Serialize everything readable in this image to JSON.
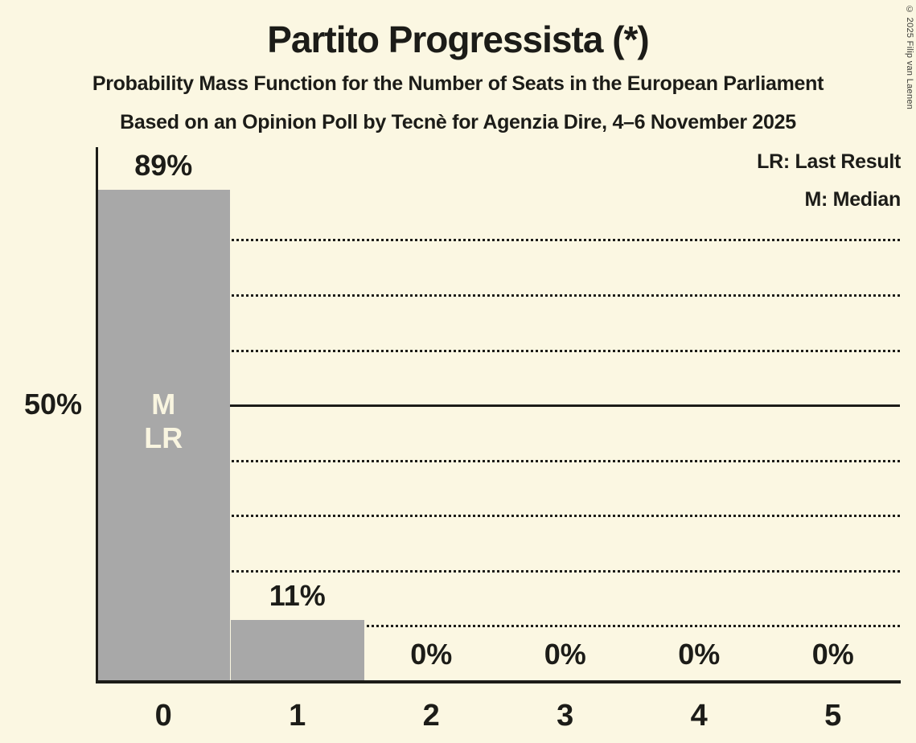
{
  "title": "Partito Progressista (*)",
  "subtitle_line1": "Probability Mass Function for the Number of Seats in the European Parliament",
  "subtitle_line2": "Based on an Opinion Poll by Tecnè for Agenzia Dire, 4–6 November 2025",
  "legend": {
    "last_result": "LR: Last Result",
    "median": "M: Median"
  },
  "copyright": "© 2025 Filip van Laenen",
  "colors": {
    "background": "#FBF7E2",
    "bar": "#A8A8A8",
    "text": "#1C1C18",
    "bar_annotation_text": "#F9F5E0"
  },
  "chart_data": {
    "type": "bar",
    "title": "Partito Progressista (*)",
    "xlabel": "",
    "ylabel": "",
    "categories": [
      "0",
      "1",
      "2",
      "3",
      "4",
      "5"
    ],
    "values": [
      89,
      11,
      0,
      0,
      0,
      0
    ],
    "value_labels": [
      "89%",
      "11%",
      "0%",
      "0%",
      "0%",
      "0%"
    ],
    "annotations": [
      {
        "category": "0",
        "lines": [
          "M",
          "LR"
        ]
      }
    ],
    "annotation_center_pct": 50,
    "y_axis_tick": {
      "pct": 50,
      "label": "50%"
    },
    "gridlines": [
      {
        "pct": 10,
        "style": "dotted"
      },
      {
        "pct": 20,
        "style": "dotted"
      },
      {
        "pct": 30,
        "style": "dotted"
      },
      {
        "pct": 40,
        "style": "dotted"
      },
      {
        "pct": 50,
        "style": "solid"
      },
      {
        "pct": 60,
        "style": "dotted"
      },
      {
        "pct": 70,
        "style": "dotted"
      },
      {
        "pct": 80,
        "style": "dotted"
      }
    ],
    "ylim": [
      0,
      96.7
    ],
    "legend_position": "top-right",
    "grid": true
  }
}
